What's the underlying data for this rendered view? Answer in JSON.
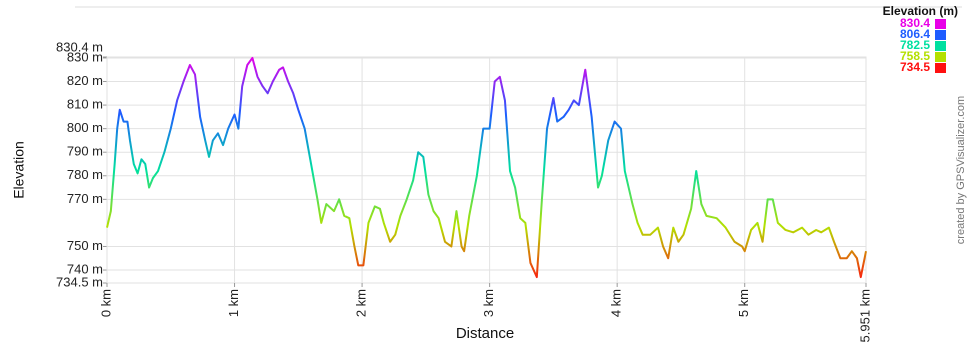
{
  "chart_data": {
    "type": "line",
    "x_label": "Distance",
    "y_label": "Elevation",
    "credit": "created by GPSVisualizer.com",
    "legend_title": "Elevation (m)",
    "legend": [
      {
        "value": 830.4,
        "color": "#e800e8"
      },
      {
        "value": 806.4,
        "color": "#1e5cff"
      },
      {
        "value": 782.5,
        "color": "#00e0a0"
      },
      {
        "value": 758.5,
        "color": "#b4e000"
      },
      {
        "value": 734.5,
        "color": "#ff1010"
      }
    ],
    "xlim": [
      0,
      5.951
    ],
    "xticks": [
      {
        "value": 0,
        "label": "0 km"
      },
      {
        "value": 1,
        "label": "1 km"
      },
      {
        "value": 2,
        "label": "2 km"
      },
      {
        "value": 3,
        "label": "3 km"
      },
      {
        "value": 4,
        "label": "4 km"
      },
      {
        "value": 5,
        "label": "5 km"
      },
      {
        "value": 5.951,
        "label": "5.951 km"
      }
    ],
    "ylim": [
      734.5,
      830.4
    ],
    "yticks": [
      {
        "value": 734.5,
        "label": "734.5 m"
      },
      {
        "value": 740,
        "label": "740 m"
      },
      {
        "value": 750,
        "label": "750 m"
      },
      {
        "value": 770,
        "label": "770 m"
      },
      {
        "value": 780,
        "label": "780 m"
      },
      {
        "value": 790,
        "label": "790 m"
      },
      {
        "value": 800,
        "label": "800 m"
      },
      {
        "value": 810,
        "label": "810 m"
      },
      {
        "value": 820,
        "label": "820 m"
      },
      {
        "value": 830,
        "label": "830 m"
      },
      {
        "value": 830.4,
        "label": "830.4 m"
      }
    ],
    "grid": true,
    "x": [
      0,
      0.03,
      0.06,
      0.08,
      0.1,
      0.13,
      0.16,
      0.18,
      0.21,
      0.24,
      0.27,
      0.3,
      0.33,
      0.36,
      0.4,
      0.45,
      0.5,
      0.55,
      0.6,
      0.65,
      0.69,
      0.73,
      0.77,
      0.8,
      0.83,
      0.87,
      0.91,
      0.95,
      1,
      1.03,
      1.06,
      1.1,
      1.14,
      1.18,
      1.22,
      1.26,
      1.3,
      1.35,
      1.38,
      1.42,
      1.46,
      1.5,
      1.55,
      1.6,
      1.65,
      1.68,
      1.72,
      1.78,
      1.82,
      1.86,
      1.9,
      1.94,
      1.97,
      2.01,
      2.05,
      2.1,
      2.14,
      2.17,
      2.22,
      2.26,
      2.3,
      2.35,
      2.4,
      2.44,
      2.48,
      2.52,
      2.56,
      2.6,
      2.65,
      2.7,
      2.74,
      2.78,
      2.8,
      2.84,
      2.9,
      2.95,
      3,
      3.04,
      3.08,
      3.12,
      3.16,
      3.2,
      3.24,
      3.28,
      3.32,
      3.37,
      3.41,
      3.45,
      3.5,
      3.53,
      3.58,
      3.62,
      3.66,
      3.7,
      3.75,
      3.8,
      3.85,
      3.88,
      3.93,
      3.98,
      4.03,
      4.06,
      4.12,
      4.16,
      4.2,
      4.26,
      4.32,
      4.36,
      4.4,
      4.44,
      4.48,
      4.52,
      4.58,
      4.62,
      4.66,
      4.7,
      4.78,
      4.85,
      4.92,
      4.98,
      5,
      5.05,
      5.1,
      5.14,
      5.18,
      5.22,
      5.26,
      5.32,
      5.38,
      5.45,
      5.5,
      5.56,
      5.6,
      5.66,
      5.7,
      5.75,
      5.8,
      5.84,
      5.88,
      5.91,
      5.94,
      5.951
    ],
    "values": [
      758,
      765,
      785,
      800,
      808,
      803,
      803,
      795,
      785,
      781,
      787,
      785,
      775,
      779,
      782,
      790,
      800,
      812,
      820,
      827,
      823,
      805,
      795,
      788,
      795,
      798,
      793,
      800,
      806,
      800,
      818,
      827,
      830,
      822,
      818,
      815,
      820,
      825,
      826,
      820,
      815,
      808,
      800,
      785,
      770,
      760,
      768,
      765,
      770,
      763,
      762,
      750,
      742,
      742,
      760,
      767,
      766,
      760,
      752,
      755,
      763,
      770,
      778,
      790,
      788,
      772,
      765,
      762,
      752,
      750,
      765,
      750,
      748,
      763,
      780,
      800,
      800,
      820,
      822,
      812,
      782,
      775,
      762,
      760,
      743,
      737,
      770,
      800,
      813,
      803,
      805,
      808,
      812,
      810,
      825,
      805,
      775,
      780,
      795,
      803,
      800,
      782,
      768,
      760,
      755,
      755,
      758,
      750,
      745,
      758,
      752,
      755,
      766,
      782,
      768,
      763,
      762,
      758,
      752,
      750,
      748,
      757,
      760,
      752,
      770,
      770,
      760,
      757,
      756,
      758,
      755,
      757,
      756,
      758,
      752,
      745,
      745,
      748,
      745,
      737,
      745,
      748
    ]
  }
}
